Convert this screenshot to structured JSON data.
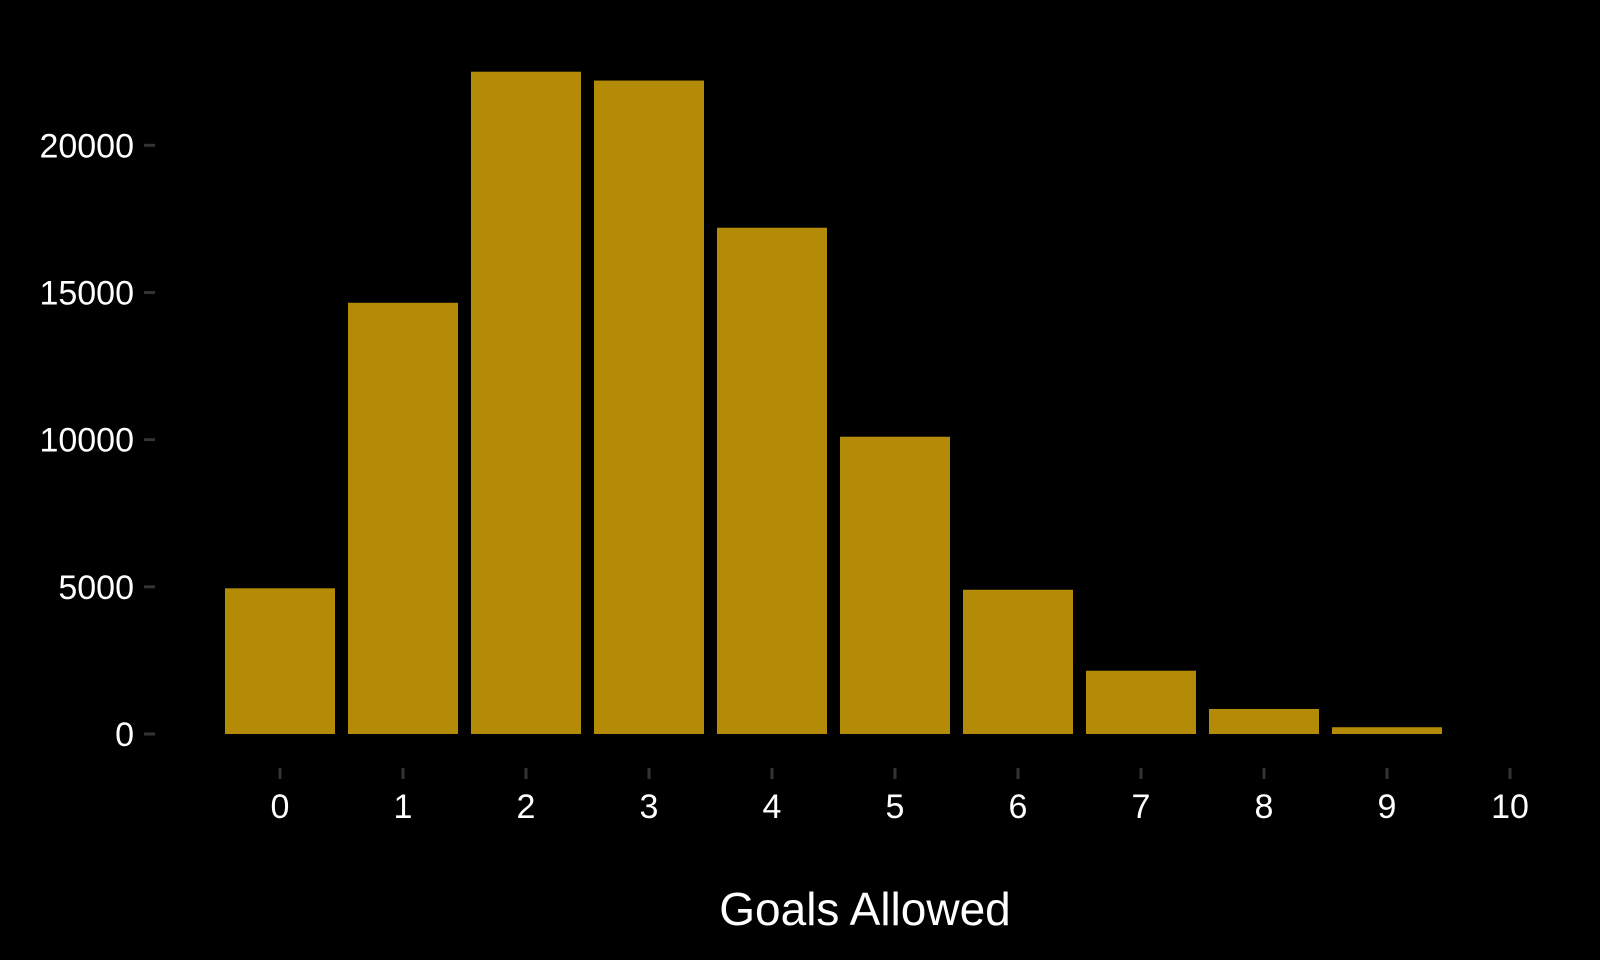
{
  "chart_data": {
    "type": "bar",
    "title": "",
    "xlabel": "Goals Allowed",
    "ylabel": "",
    "categories": [
      "0",
      "1",
      "2",
      "3",
      "4",
      "5",
      "6",
      "7",
      "8",
      "9",
      "10"
    ],
    "values": [
      4950,
      14650,
      22500,
      22200,
      17200,
      10100,
      4900,
      2150,
      850,
      230,
      0
    ],
    "x_ticks": [
      "0",
      "1",
      "2",
      "3",
      "4",
      "5",
      "6",
      "7",
      "8",
      "9",
      "10"
    ],
    "y_ticks": [
      "0",
      "5000",
      "10000",
      "15000",
      "20000"
    ],
    "ylim": [
      0,
      23000
    ],
    "grid": false,
    "legend": "none",
    "colors": {
      "bar": "#b38b07",
      "background": "#000000",
      "text": "#ffffff",
      "tick": "#333333"
    }
  }
}
